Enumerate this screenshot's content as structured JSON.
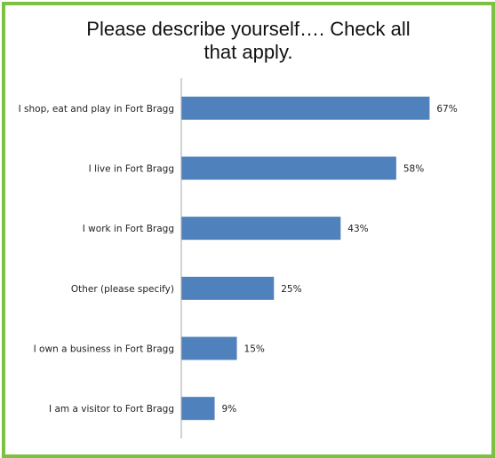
{
  "chart_data": {
    "type": "bar",
    "orientation": "horizontal",
    "title_line1": "Please describe yourself…. Check all",
    "title_line2": "that apply.",
    "categories": [
      "I shop, eat and play in Fort Bragg",
      "I live in Fort Bragg",
      "I work in Fort Bragg",
      "Other (please specify)",
      "I own a business in Fort Bragg",
      "I am a visitor to Fort Bragg"
    ],
    "values": [
      67,
      58,
      43,
      25,
      15,
      9
    ],
    "value_labels": [
      "67%",
      "58%",
      "43%",
      "25%",
      "15%",
      "9%"
    ],
    "unit": "%",
    "xlim": [
      0,
      100
    ],
    "grid": false,
    "legend": "none",
    "bar_color": "#4f81bd",
    "border_color": "#7dc142"
  }
}
